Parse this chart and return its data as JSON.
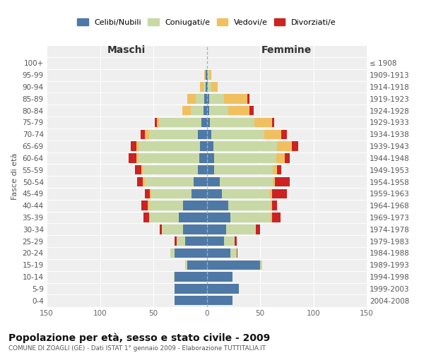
{
  "age_groups": [
    "0-4",
    "5-9",
    "10-14",
    "15-19",
    "20-24",
    "25-29",
    "30-34",
    "35-39",
    "40-44",
    "45-49",
    "50-54",
    "55-59",
    "60-64",
    "65-69",
    "70-74",
    "75-79",
    "80-84",
    "85-89",
    "90-94",
    "95-99",
    "100+"
  ],
  "birth_years": [
    "2004-2008",
    "1999-2003",
    "1994-1998",
    "1989-1993",
    "1984-1988",
    "1979-1983",
    "1974-1978",
    "1969-1973",
    "1964-1968",
    "1959-1963",
    "1954-1958",
    "1949-1953",
    "1944-1948",
    "1939-1943",
    "1934-1938",
    "1929-1933",
    "1924-1928",
    "1919-1923",
    "1914-1918",
    "1909-1913",
    "≤ 1908"
  ],
  "colors": {
    "celibi": "#4e79a7",
    "coniugati": "#c8d9a5",
    "vedovi": "#f0c060",
    "divorziati": "#cc2222"
  },
  "maschi": {
    "celibi": [
      30,
      30,
      30,
      18,
      30,
      20,
      22,
      26,
      22,
      14,
      12,
      8,
      7,
      6,
      8,
      5,
      3,
      2,
      1,
      1,
      0
    ],
    "coniugati": [
      0,
      0,
      1,
      2,
      4,
      8,
      20,
      28,
      32,
      38,
      46,
      52,
      57,
      58,
      46,
      40,
      12,
      8,
      2,
      0,
      0
    ],
    "vedovi": [
      0,
      0,
      0,
      0,
      0,
      0,
      0,
      0,
      1,
      1,
      2,
      1,
      2,
      2,
      4,
      2,
      8,
      8,
      3,
      1,
      0
    ],
    "divorziati": [
      0,
      0,
      0,
      0,
      0,
      2,
      2,
      5,
      6,
      5,
      5,
      6,
      7,
      5,
      4,
      2,
      0,
      0,
      0,
      0,
      0
    ]
  },
  "femmine": {
    "celibi": [
      24,
      30,
      24,
      50,
      22,
      16,
      18,
      22,
      20,
      14,
      12,
      7,
      7,
      6,
      4,
      3,
      2,
      2,
      1,
      1,
      0
    ],
    "coniugati": [
      0,
      0,
      0,
      2,
      6,
      10,
      28,
      38,
      40,
      45,
      50,
      55,
      58,
      60,
      50,
      42,
      18,
      14,
      3,
      1,
      0
    ],
    "vedovi": [
      0,
      0,
      0,
      0,
      0,
      0,
      0,
      1,
      1,
      2,
      2,
      4,
      8,
      14,
      16,
      16,
      20,
      22,
      6,
      2,
      0
    ],
    "divorziati": [
      0,
      0,
      0,
      0,
      1,
      2,
      4,
      8,
      5,
      14,
      14,
      4,
      5,
      6,
      5,
      2,
      4,
      2,
      0,
      0,
      0
    ]
  },
  "xlim": 150,
  "title": "Popolazione per età, sesso e stato civile - 2009",
  "subtitle": "COMUNE DI ZOAGLI (GE) - Dati ISTAT 1° gennaio 2009 - Elaborazione TUTTITALIA.IT",
  "ylabel_left": "Fasce di età",
  "xlabel_maschi": "Maschi",
  "xlabel_femmine": "Femmine",
  "legend_labels": [
    "Celibi/Nubili",
    "Coniugati/e",
    "Vedovi/e",
    "Divorziati/e"
  ],
  "bg_color": "#efefef",
  "fig_bg": "#ffffff"
}
